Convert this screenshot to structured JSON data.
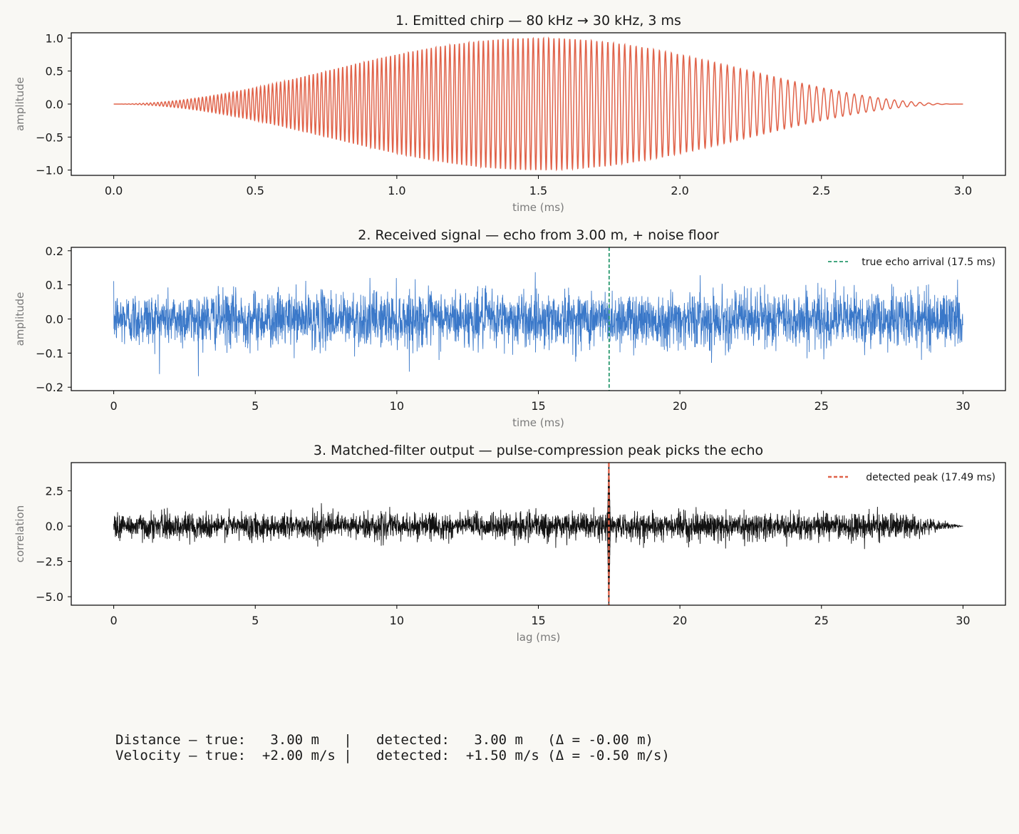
{
  "colors": {
    "chirp": "#e0634a",
    "received": "#3a78c9",
    "correlation": "#111111",
    "true_marker": "#2a9a6f",
    "detected_marker": "#e0634a"
  },
  "chart_data": [
    {
      "type": "line",
      "title": "1. Emitted chirp — 80 kHz → 30 kHz, 3 ms",
      "xlabel": "time (ms)",
      "ylabel": "amplitude",
      "xlim": [
        -0.15,
        3.15
      ],
      "ylim": [
        -1.08,
        1.08
      ],
      "xticks": [
        0.0,
        0.5,
        1.0,
        1.5,
        2.0,
        2.5,
        3.0
      ],
      "xtick_labels": [
        "0.0",
        "0.5",
        "1.0",
        "1.5",
        "2.0",
        "2.5",
        "3.0"
      ],
      "yticks": [
        1.0,
        0.5,
        0.0,
        -0.5,
        -1.0
      ],
      "ytick_labels": [
        "1.0",
        "0.5",
        "0.0",
        "−0.5",
        "−1.0"
      ],
      "series": [
        {
          "signal": "linear chirp",
          "f_start_khz": 80,
          "f_end_khz": 30,
          "duration_ms": 3,
          "envelope": "hann",
          "peak_amplitude": 1.0
        }
      ]
    },
    {
      "type": "line",
      "title": "2. Received signal — echo from 3.00 m, + noise floor",
      "xlabel": "time (ms)",
      "ylabel": "amplitude",
      "xlim": [
        -1.5,
        31.5
      ],
      "ylim": [
        -0.21,
        0.21
      ],
      "xticks": [
        0,
        5,
        10,
        15,
        20,
        25,
        30
      ],
      "xtick_labels": [
        "0",
        "5",
        "10",
        "15",
        "20",
        "25",
        "30"
      ],
      "yticks": [
        0.2,
        0.1,
        0.0,
        -0.1,
        -0.2
      ],
      "ytick_labels": [
        "0.2",
        "0.1",
        "0.0",
        "−0.1",
        "−0.2"
      ],
      "series": [
        {
          "signal": "noise",
          "x_range_ms": [
            0,
            30
          ],
          "noise_std": 0.04,
          "peak_abs": 0.19
        }
      ],
      "markers": [
        {
          "x": 17.5,
          "label": "true echo arrival (17.5 ms)",
          "style": "dashed"
        }
      ],
      "legend": "top-right"
    },
    {
      "type": "line",
      "title": "3. Matched-filter output — pulse-compression peak picks the echo",
      "xlabel": "lag (ms)",
      "ylabel": "correlation",
      "xlim": [
        -1.5,
        31.5
      ],
      "ylim": [
        -5.6,
        4.5
      ],
      "xticks": [
        0,
        5,
        10,
        15,
        20,
        25,
        30
      ],
      "xtick_labels": [
        "0",
        "5",
        "10",
        "15",
        "20",
        "25",
        "30"
      ],
      "yticks": [
        2.5,
        0.0,
        -2.5,
        -5.0
      ],
      "ytick_labels": [
        "2.5",
        "0.0",
        "−2.5",
        "−5.0"
      ],
      "series": [
        {
          "signal": "correlation",
          "x_range_ms": [
            0,
            30
          ],
          "noise_std": 0.45,
          "taper_start_ms": 28,
          "peak_x": 17.49,
          "peak_max": 4.4,
          "peak_min": -5.6
        }
      ],
      "markers": [
        {
          "x": 17.49,
          "label": "detected peak (17.49 ms)",
          "style": "dashed"
        }
      ],
      "legend": "top-right"
    }
  ],
  "readout": {
    "line1": "Distance — true:   3.00 m   |   detected:   3.00 m   (Δ = -0.00 m)",
    "line2": "Velocity — true:  +2.00 m/s |   detected:  +1.50 m/s (Δ = -0.50 m/s)"
  }
}
